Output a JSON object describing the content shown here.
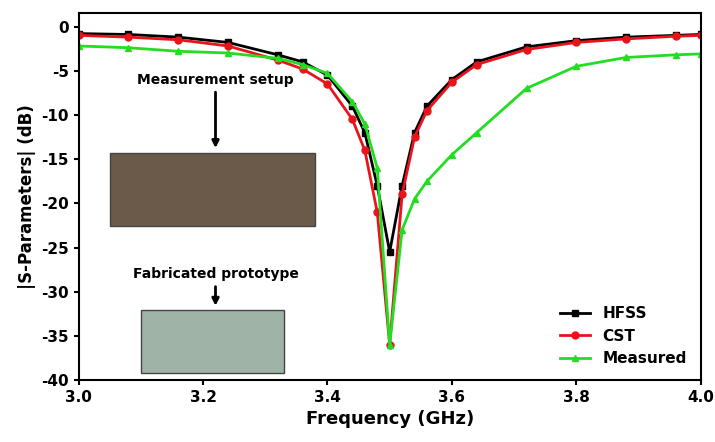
{
  "chart_data": {
    "type": "line",
    "x_label": "Frequency (GHz)",
    "y_label": "|S-Parameters| (dB)",
    "x": [
      3.0,
      3.08,
      3.16,
      3.24,
      3.32,
      3.36,
      3.4,
      3.44,
      3.46,
      3.48,
      3.5,
      3.52,
      3.54,
      3.56,
      3.6,
      3.64,
      3.72,
      3.8,
      3.88,
      3.96,
      4.0
    ],
    "series": [
      {
        "name": "HFSS",
        "color": "#000000",
        "marker": "square",
        "line_style": "solid",
        "values": [
          -0.8,
          -0.9,
          -1.2,
          -1.8,
          -3.2,
          -4.0,
          -5.5,
          -9,
          -12,
          -18,
          -25.5,
          -18,
          -12,
          -9,
          -6,
          -4,
          -2.3,
          -1.6,
          -1.2,
          -1.0,
          -0.9
        ]
      },
      {
        "name": "CST",
        "color": "#e8141b",
        "marker": "circle",
        "line_style": "solid",
        "values": [
          -1.0,
          -1.2,
          -1.5,
          -2.2,
          -3.8,
          -4.8,
          -6.5,
          -10.5,
          -14,
          -21,
          -36,
          -19,
          -12.5,
          -9.5,
          -6.3,
          -4.3,
          -2.6,
          -1.8,
          -1.4,
          -1.1,
          -1.0
        ]
      },
      {
        "name": "Measured",
        "color": "#22dd22",
        "marker": "triangle",
        "line_style": "solid",
        "values": [
          -2.2,
          -2.4,
          -2.8,
          -3.0,
          -3.6,
          -4.3,
          -5.3,
          -8.5,
          -11,
          -16,
          -36,
          -23,
          -19.5,
          -17.5,
          -14.5,
          -12,
          -7,
          -4.5,
          -3.5,
          -3.2,
          -3.1
        ]
      }
    ],
    "xlim": [
      3.0,
      4.0
    ],
    "xticks": [
      {
        "value": 3.0,
        "label": "3.0"
      },
      3.2,
      3.4,
      3.6,
      3.8,
      {
        "value": 4.0,
        "label": "4.0"
      }
    ],
    "ylim": [
      -40,
      1.5
    ],
    "yticks": [
      -40,
      -35,
      -30,
      -25,
      -20,
      -15,
      -10,
      -5,
      0
    ],
    "legend": "lower right",
    "grid": false,
    "annotations": [
      "Measurement setup",
      "Fabricated prototype"
    ]
  }
}
